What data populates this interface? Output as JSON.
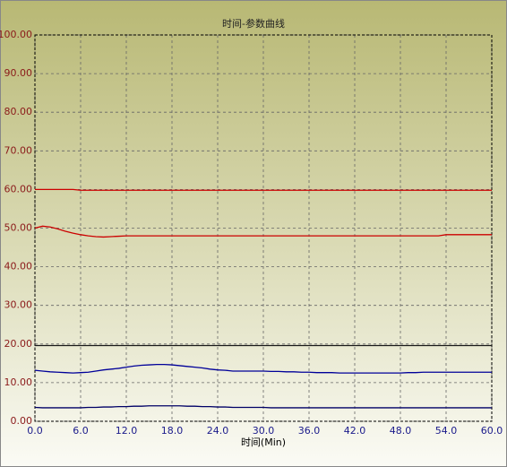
{
  "chart_data": {
    "type": "line",
    "title": "时间-参数曲线",
    "x_label": "时间(Min)",
    "x": [
      0,
      1,
      2,
      3,
      4,
      5,
      6,
      7,
      8,
      9,
      10,
      11,
      12,
      13,
      14,
      15,
      16,
      17,
      18,
      19,
      20,
      21,
      22,
      23,
      24,
      25,
      26,
      27,
      28,
      29,
      30,
      31,
      32,
      33,
      34,
      35,
      36,
      37,
      38,
      39,
      40,
      41,
      42,
      43,
      44,
      45,
      46,
      47,
      48,
      49,
      50,
      51,
      52,
      53,
      54,
      55,
      56,
      57,
      58,
      59,
      60
    ],
    "series": [
      {
        "color": "#cc0000",
        "values": [
          60,
          60,
          60,
          60,
          60,
          60,
          59.8,
          59.8,
          59.8,
          59.8,
          59.8,
          59.8,
          59.8,
          59.8,
          59.8,
          59.8,
          59.8,
          59.8,
          59.8,
          59.8,
          59.8,
          59.8,
          59.8,
          59.8,
          59.8,
          59.8,
          59.8,
          59.8,
          59.8,
          59.8,
          59.8,
          59.8,
          59.8,
          59.8,
          59.8,
          59.8,
          59.8,
          59.8,
          59.8,
          59.8,
          59.8,
          59.8,
          59.8,
          59.8,
          59.8,
          59.8,
          59.8,
          59.8,
          59.8,
          59.8,
          59.8,
          59.8,
          59.8,
          59.8,
          59.8,
          59.8,
          59.8,
          59.8,
          59.8,
          59.8,
          59.8
        ]
      },
      {
        "color": "#cc0000",
        "values": [
          50,
          50.5,
          50.3,
          49.8,
          49.2,
          48.7,
          48.3,
          48,
          47.8,
          47.7,
          47.8,
          47.9,
          48,
          48,
          48,
          48,
          48,
          48,
          48,
          48,
          48,
          48,
          48,
          48,
          48,
          48,
          48,
          48,
          48,
          48,
          48,
          48,
          48,
          48,
          48,
          48,
          48,
          48,
          48,
          48,
          48,
          48,
          48,
          48,
          48,
          48,
          48,
          48,
          48,
          48,
          48,
          48,
          48,
          48,
          48.3,
          48.3,
          48.3,
          48.3,
          48.3,
          48.3,
          48.3
        ]
      },
      {
        "color": "#1a1a1a",
        "values": [
          19.6,
          19.6,
          19.6,
          19.6,
          19.6,
          19.6,
          19.6,
          19.6,
          19.6,
          19.6,
          19.6,
          19.6,
          19.6,
          19.6,
          19.6,
          19.6,
          19.6,
          19.6,
          19.6,
          19.6,
          19.6,
          19.6,
          19.6,
          19.6,
          19.6,
          19.6,
          19.6,
          19.6,
          19.6,
          19.6,
          19.6,
          19.6,
          19.6,
          19.6,
          19.6,
          19.6,
          19.6,
          19.6,
          19.6,
          19.6,
          19.6,
          19.6,
          19.6,
          19.6,
          19.6,
          19.6,
          19.6,
          19.6,
          19.6,
          19.6,
          19.6,
          19.6,
          19.6,
          19.6,
          19.6,
          19.6,
          19.6,
          19.6,
          19.6,
          19.6,
          19.6
        ]
      },
      {
        "color": "#000099",
        "values": [
          13.2,
          13,
          12.8,
          12.7,
          12.6,
          12.5,
          12.6,
          12.7,
          13,
          13.3,
          13.5,
          13.7,
          14,
          14.3,
          14.5,
          14.6,
          14.7,
          14.7,
          14.6,
          14.4,
          14.2,
          14,
          13.8,
          13.5,
          13.3,
          13.2,
          13,
          13,
          13,
          13,
          13,
          12.9,
          12.9,
          12.8,
          12.8,
          12.7,
          12.7,
          12.6,
          12.6,
          12.6,
          12.5,
          12.5,
          12.5,
          12.5,
          12.5,
          12.5,
          12.5,
          12.5,
          12.5,
          12.6,
          12.6,
          12.7,
          12.7,
          12.7,
          12.7,
          12.7,
          12.7,
          12.7,
          12.7,
          12.7,
          12.7
        ]
      },
      {
        "color": "#000066",
        "values": [
          3.6,
          3.5,
          3.5,
          3.5,
          3.5,
          3.5,
          3.5,
          3.6,
          3.6,
          3.7,
          3.7,
          3.8,
          3.8,
          3.9,
          3.9,
          4,
          4,
          4,
          4,
          4,
          3.9,
          3.9,
          3.8,
          3.8,
          3.7,
          3.7,
          3.6,
          3.6,
          3.6,
          3.6,
          3.6,
          3.5,
          3.5,
          3.5,
          3.5,
          3.5,
          3.5,
          3.5,
          3.5,
          3.5,
          3.5,
          3.5,
          3.5,
          3.5,
          3.5,
          3.5,
          3.5,
          3.5,
          3.5,
          3.5,
          3.5,
          3.5,
          3.5,
          3.5,
          3.5,
          3.5,
          3.5,
          3.5,
          3.5,
          3.5,
          3.5
        ]
      }
    ],
    "xlim": [
      0,
      60
    ],
    "xticks": [
      {
        "value": 0,
        "label": "0.0"
      },
      {
        "value": 6,
        "label": "6.0"
      },
      {
        "value": 12,
        "label": "12.0"
      },
      {
        "value": 18,
        "label": "18.0"
      },
      {
        "value": 24,
        "label": "24.0"
      },
      {
        "value": 30,
        "label": "30.0"
      },
      {
        "value": 36,
        "label": "36.0"
      },
      {
        "value": 42,
        "label": "42.0"
      },
      {
        "value": 48,
        "label": "48.0"
      },
      {
        "value": 54,
        "label": "54.0"
      },
      {
        "value": 60,
        "label": "60.0"
      }
    ],
    "ylim": [
      0,
      100
    ],
    "yticks": [
      {
        "value": 0,
        "label": "0.00"
      },
      {
        "value": 10,
        "label": "10.00"
      },
      {
        "value": 20,
        "label": "20.00"
      },
      {
        "value": 30,
        "label": "30.00"
      },
      {
        "value": 40,
        "label": "40.00"
      },
      {
        "value": 50,
        "label": "50.00"
      },
      {
        "value": 60,
        "label": "60.00"
      },
      {
        "value": 70,
        "label": "70.00"
      },
      {
        "value": 80,
        "label": "80.00"
      },
      {
        "value": 90,
        "label": "90.00"
      },
      {
        "value": 100,
        "label": "100.00"
      }
    ],
    "grid": true
  }
}
